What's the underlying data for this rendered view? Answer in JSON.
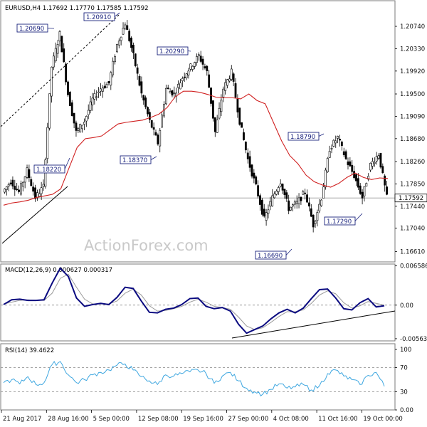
{
  "chart_data": [
    {
      "type": "candlestick",
      "panel": "price",
      "header": "EURUSD,H4  1.17692 1.17770 1.17585 1.17592",
      "watermark": "ActionForex.com",
      "ylim": [
        1.1642,
        1.2121
      ],
      "yticks": [
        "1.20740",
        "1.20330",
        "1.19920",
        "1.19500",
        "1.19090",
        "1.18680",
        "1.18260",
        "1.17850",
        "1.17440",
        "1.17040",
        "1.16610"
      ],
      "ytick_values": [
        1.2074,
        1.2033,
        1.1992,
        1.195,
        1.1909,
        1.1868,
        1.1826,
        1.1785,
        1.1744,
        1.1704,
        1.1661
      ],
      "current_price_label": "1.17592",
      "current_price": 1.17592,
      "colors": {
        "candles": "#000000",
        "ma": "#d02020",
        "label_border": "#1a237e",
        "label_text": "#1a237e",
        "trendline": "#000000"
      },
      "ma_values": [
        1.1746,
        1.175,
        1.1752,
        1.1755,
        1.176,
        1.1763,
        1.1766,
        1.1776,
        1.1814,
        1.1852,
        1.1868,
        1.187,
        1.1873,
        1.1884,
        1.1895,
        1.1898,
        1.19,
        1.1902,
        1.1907,
        1.1913,
        1.1925,
        1.1945,
        1.1955,
        1.1955,
        1.1953,
        1.1949,
        1.1944,
        1.1943,
        1.1943,
        1.1941,
        1.195,
        1.1938,
        1.1932,
        1.1898,
        1.1864,
        1.1837,
        1.1822,
        1.1801,
        1.1789,
        1.1783,
        1.1779,
        1.1786,
        1.1797,
        1.1805,
        1.1797,
        1.1793,
        1.1796,
        1.1795
      ],
      "close_values": [
        1.177,
        1.179,
        1.177,
        1.181,
        1.176,
        1.178,
        1.2,
        1.206,
        1.195,
        1.188,
        1.19,
        1.194,
        1.196,
        1.197,
        1.204,
        1.208,
        1.202,
        1.195,
        1.19,
        1.186,
        1.196,
        1.195,
        1.198,
        1.2,
        1.202,
        1.199,
        1.188,
        1.196,
        1.199,
        1.19,
        1.183,
        1.178,
        1.172,
        1.176,
        1.179,
        1.174,
        1.175,
        1.177,
        1.171,
        1.176,
        1.185,
        1.187,
        1.183,
        1.18,
        1.176,
        1.182,
        1.184,
        1.176
      ],
      "annotations": [
        {
          "label": "1.20690",
          "value": 1.2069
        },
        {
          "label": "1.20910",
          "value": 1.2091
        },
        {
          "label": "1.20290",
          "value": 1.2029
        },
        {
          "label": "1.18220",
          "value": 1.1822
        },
        {
          "label": "1.18370",
          "value": 1.1837
        },
        {
          "label": "1.18790",
          "value": 1.1879
        },
        {
          "label": "1.17290",
          "value": 1.1729
        },
        {
          "label": "1.16690",
          "value": 1.1669
        }
      ]
    },
    {
      "type": "line",
      "panel": "macd",
      "header": "MACD(12,26,9) 0.000627 0.000317",
      "ylim": [
        -0.006,
        0.0069
      ],
      "yticks": [
        "0.006586",
        "0.00",
        "-0.005634"
      ],
      "ytick_values": [
        0.006586,
        0.0,
        -0.005634
      ],
      "colors": {
        "macd": "#0a0a80",
        "signal": "#9a9a9a",
        "zero_line": "#777777",
        "trendline": "#000000"
      },
      "series": [
        {
          "values": [
            0.0001,
            0.0009,
            0.001,
            0.0008,
            0.0008,
            0.0009,
            0.0037,
            0.0062,
            0.0048,
            0.0012,
            -0.0002,
            0.0001,
            0.0003,
            0.0001,
            0.0013,
            0.003,
            0.0028,
            0.0007,
            -0.0012,
            -0.0013,
            -0.0007,
            -0.0005,
            0.0001,
            0.0011,
            0.0012,
            -0.0002,
            -0.0006,
            -0.0004,
            -0.001,
            -0.0032,
            -0.0047,
            -0.0041,
            -0.0035,
            -0.0023,
            -0.0013,
            -0.0007,
            -0.0013,
            -0.0005,
            0.0011,
            0.0026,
            0.0027,
            0.0012,
            -0.0006,
            -0.0008,
            0.0004,
            0.0011,
            -0.0003,
            -0.0001
          ]
        },
        {
          "values": [
            0.0002,
            0.0005,
            0.0008,
            0.0009,
            0.0008,
            0.0008,
            0.002,
            0.0045,
            0.0052,
            0.003,
            0.001,
            0.0002,
            0.0002,
            0.0002,
            0.0007,
            0.002,
            0.0027,
            0.0017,
            -0.0001,
            -0.001,
            -0.0009,
            -0.0006,
            -0.0002,
            0.0005,
            0.001,
            0.0005,
            -0.0002,
            -0.0004,
            -0.0007,
            -0.002,
            -0.0035,
            -0.0041,
            -0.0038,
            -0.0029,
            -0.0019,
            -0.0011,
            -0.0011,
            -0.0008,
            0.0003,
            0.0017,
            0.0024,
            0.0019,
            0.0004,
            -0.0005,
            -0.0001,
            0.0006,
            0.0003,
            0.0
          ]
        }
      ]
    },
    {
      "type": "line",
      "panel": "rsi",
      "header": "RSI(14) 39.4622",
      "ylim": [
        0,
        100
      ],
      "yticks": [
        "100",
        "70",
        "30",
        "0.00"
      ],
      "ytick_values": [
        100,
        70,
        30,
        0
      ],
      "levels": [
        70,
        30
      ],
      "colors": {
        "rsi": "#3fa7e0",
        "levels": "#888888"
      },
      "series": [
        {
          "values": [
            45,
            50,
            43,
            55,
            42,
            45,
            75,
            80,
            58,
            45,
            50,
            58,
            62,
            66,
            74,
            76,
            66,
            55,
            48,
            42,
            58,
            56,
            60,
            63,
            66,
            60,
            44,
            56,
            62,
            48,
            36,
            30,
            26,
            34,
            43,
            36,
            38,
            42,
            33,
            40,
            60,
            66,
            56,
            50,
            42,
            57,
            62,
            39
          ]
        }
      ]
    }
  ],
  "x_axis": {
    "tick_labels": [
      "21 Aug 2017",
      "28 Aug 16:00",
      "5 Sep 00:00",
      "12 Sep 08:00",
      "19 Sep 16:00",
      "27 Sep 00:00",
      "4 Oct 08:00",
      "11 Oct 16:00",
      "19 Oct 00:00"
    ]
  }
}
